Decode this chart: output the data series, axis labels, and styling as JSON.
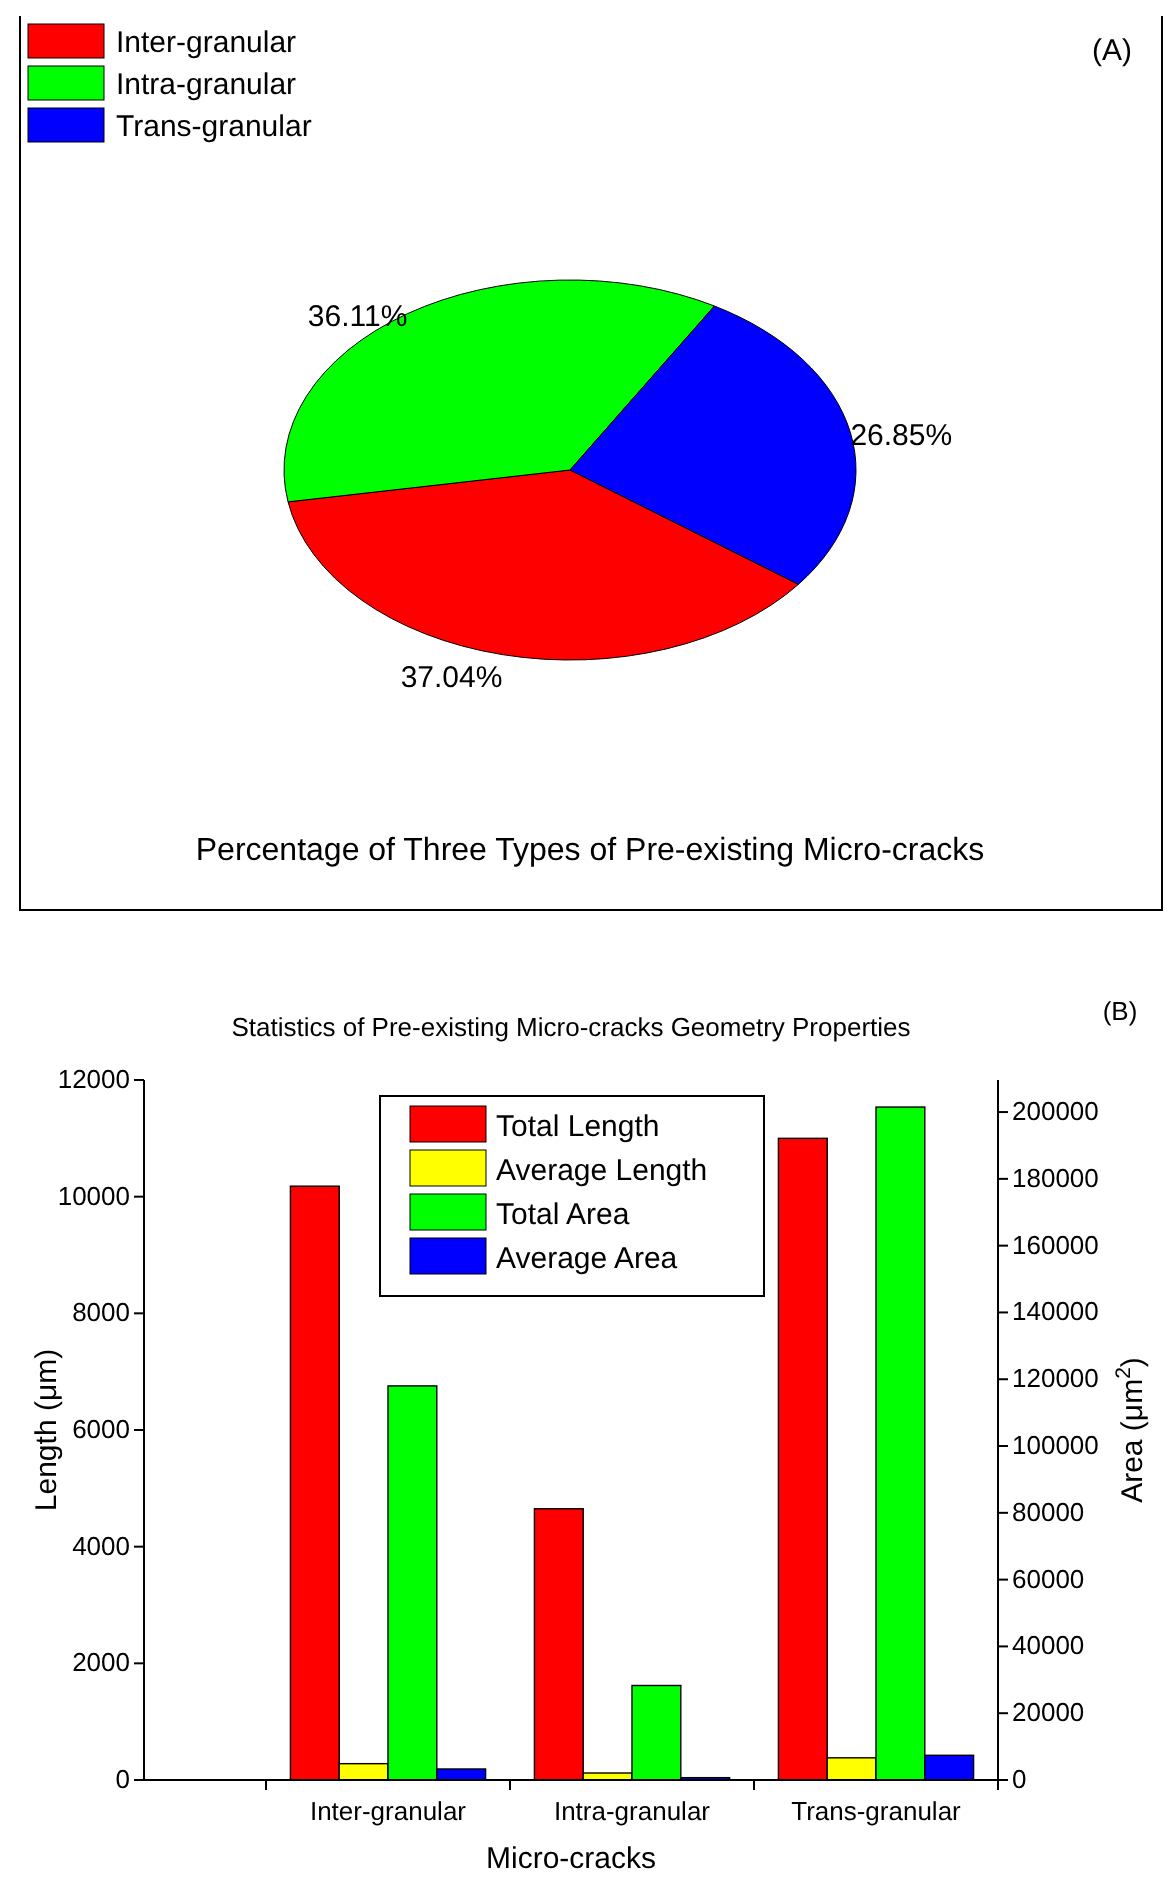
{
  "chart_data": [
    {
      "type": "pie",
      "title": "Percentage of Three Types of Pre-existing Micro-cracks",
      "annotations": [
        "(A)"
      ],
      "categories": [
        "Inter-granular",
        "Intra-granular",
        "Trans-granular"
      ],
      "values": [
        37.04,
        36.11,
        26.85
      ],
      "colors": [
        "#ff0000",
        "#00ff00",
        "#0000ff"
      ],
      "value_labels": [
        "37.04%",
        "36.11%",
        "26.85%"
      ],
      "legend": "top left"
    },
    {
      "type": "bar",
      "title": "Statistics of Pre-existing Micro-cracks Geometry Properties",
      "annotations": [
        "(B)"
      ],
      "xlabel": "Micro-cracks",
      "ylabel": "Length (μm)",
      "y2label": "Area (μm$^{2}$)",
      "categories": [
        null,
        "Inter-granular",
        "Intra-granular",
        "Trans-granular"
      ],
      "series": [
        {
          "name": "Total Length",
          "color": "#ff0000",
          "values": [
            null,
            10180,
            4650,
            11000
          ]
        },
        {
          "name": "Average Length",
          "color": "#ffff00",
          "values": [
            null,
            280,
            120,
            380
          ]
        },
        {
          "name": "Total Area",
          "color": "#00ff00",
          "axis": "y2",
          "values": [
            null,
            118000,
            28300,
            201500
          ]
        },
        {
          "name": "Average Area",
          "color": "#0000ff",
          "axis": "y2",
          "values": [
            null,
            3300,
            700,
            7400
          ]
        }
      ],
      "ylim": [
        0,
        12000
      ],
      "yticks": [
        0,
        2000,
        4000,
        6000,
        8000,
        10000,
        12000
      ],
      "y2lim": [
        0,
        209600
      ],
      "y2ticks": [
        0,
        20000,
        40000,
        60000,
        80000,
        100000,
        120000,
        140000,
        160000,
        180000,
        200000
      ],
      "legend": "top",
      "grid": false
    }
  ]
}
